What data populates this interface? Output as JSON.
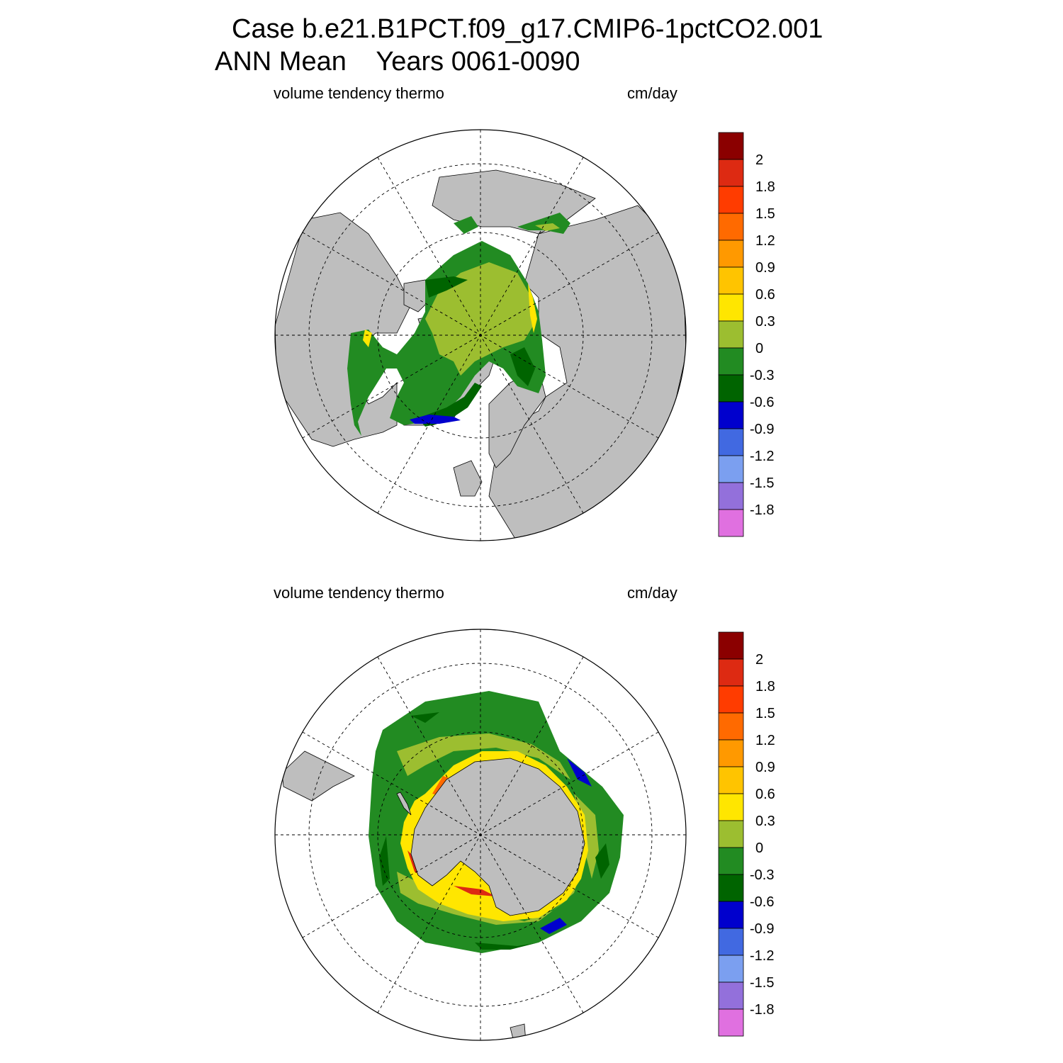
{
  "title": {
    "line1": "Case b.e21.B1PCT.f09_g17.CMIP6-1pctCO2.001",
    "line2": "ANN Mean    Years 0061-0090"
  },
  "panels": [
    {
      "id": "north",
      "field_label": "volume tendency thermo",
      "units": "cm/day"
    },
    {
      "id": "south",
      "field_label": "volume tendency thermo",
      "units": "cm/day"
    }
  ],
  "colorbar": {
    "levels": [
      "2",
      "1.8",
      "1.5",
      "1.2",
      "0.9",
      "0.6",
      "0.3",
      "0",
      "-0.3",
      "-0.6",
      "-0.9",
      "-1.2",
      "-1.5",
      "-1.8"
    ],
    "colors": [
      "#8b0000",
      "#dd2a12",
      "#ff3c00",
      "#ff6a00",
      "#ff9900",
      "#ffc400",
      "#ffe600",
      "#9cbe30",
      "#228b22",
      "#006400",
      "#0000cd",
      "#4169e1",
      "#7b9ff0",
      "#9370db",
      "#e070e0"
    ]
  },
  "map_colors": {
    "land": "#bebebe",
    "ocean_no_ice": "#ffffff",
    "grid": "#000000"
  }
}
